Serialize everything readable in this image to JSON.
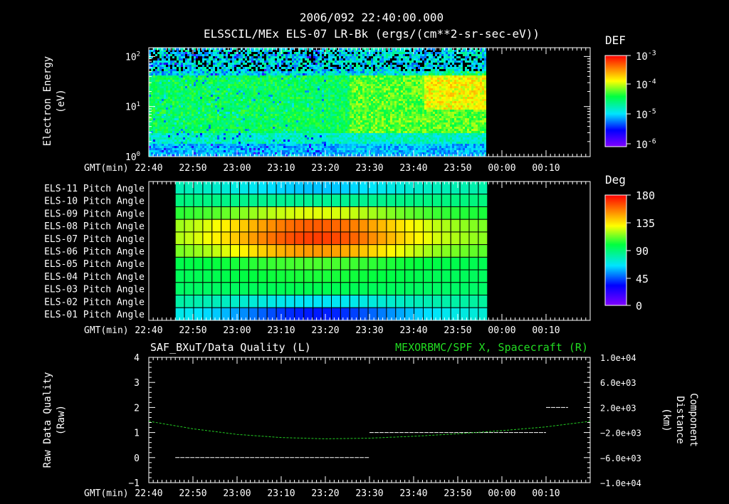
{
  "chart_data": [
    {
      "type": "heatmap",
      "name": "electron-spectrogram",
      "title": "2006/092 22:40:00.000",
      "subtitle": "ELSSCIL/MEx ELS-07 LR-Bk  (ergs/(cm**2-sr-sec-eV))",
      "ylabel_line1": "Electron Energy",
      "ylabel_line2": "(eV)",
      "yscale": "log",
      "ylim": [
        1,
        150
      ],
      "yticks": [
        {
          "base": "10",
          "exp": "0",
          "value": 1
        },
        {
          "base": "10",
          "exp": "1",
          "value": 10
        },
        {
          "base": "10",
          "exp": "2",
          "value": 100
        }
      ],
      "x_axis_label": "GMT(min)",
      "x_range_min": [
        0,
        100
      ],
      "x_ticks": [
        "22:40",
        "22:50",
        "23:00",
        "23:10",
        "23:20",
        "23:30",
        "23:40",
        "23:50",
        "00:00",
        "00:10"
      ],
      "data_coverage_min": [
        0,
        76
      ],
      "colorbar": {
        "label": "DEF",
        "scale": "log",
        "range": [
          1e-06,
          0.001
        ],
        "ticks": [
          {
            "base": "10",
            "exp": "-3"
          },
          {
            "base": "10",
            "exp": "-4"
          },
          {
            "base": "10",
            "exp": "-5"
          },
          {
            "base": "10",
            "exp": "-6"
          }
        ]
      }
    },
    {
      "type": "heatmap",
      "name": "pitch-angle-grid",
      "rows": [
        "ELS-11 Pitch Angle",
        "ELS-10 Pitch Angle",
        "ELS-09 Pitch Angle",
        "ELS-08 Pitch Angle",
        "ELS-07 Pitch Angle",
        "ELS-06 Pitch Angle",
        "ELS-05 Pitch Angle",
        "ELS-04 Pitch Angle",
        "ELS-03 Pitch Angle",
        "ELS-02 Pitch Angle",
        "ELS-01 Pitch Angle"
      ],
      "row_angles_deg": [
        65,
        85,
        120,
        150,
        155,
        140,
        105,
        100,
        95,
        70,
        45
      ],
      "data_start_min": 6,
      "data_end_min": 76,
      "x_axis_label": "GMT(min)",
      "x_ticks": [
        "22:40",
        "22:50",
        "23:00",
        "23:10",
        "23:20",
        "23:30",
        "23:40",
        "23:50",
        "00:00",
        "00:10"
      ],
      "colorbar": {
        "label": "Deg",
        "range": [
          0,
          180
        ],
        "ticks": [
          "180",
          "135",
          "90",
          "45",
          "0"
        ]
      }
    },
    {
      "type": "line",
      "name": "data-quality-and-position",
      "title_left": "SAF_BXuT/Data Quality (L)",
      "title_right": "MEXORBMC/SPF X, Spacecraft (R)",
      "right_title_color": "#22dd22",
      "ylabel_left_line1": "Raw Data Quality",
      "ylabel_left_line2": "(Raw)",
      "ylabel_right_line1": "Component",
      "ylabel_right_line2": "Distance",
      "ylabel_right_line3": "(km)",
      "ylim_left": [
        -1,
        4
      ],
      "yticks_left": [
        "4",
        "3",
        "2",
        "1",
        "0",
        "−1"
      ],
      "ylim_right": [
        -10000,
        10000
      ],
      "yticks_right": [
        "1.0e+04",
        "6.0e+03",
        "2.0e+03",
        "−2.0e+03",
        "−6.0e+03",
        "−1.0e+04"
      ],
      "x_axis_label": "GMT(min)",
      "x_ticks": [
        "22:40",
        "22:50",
        "23:00",
        "23:10",
        "23:20",
        "23:30",
        "23:40",
        "23:50",
        "00:00",
        "00:10"
      ],
      "series": [
        {
          "name": "Data Quality",
          "axis": "left",
          "color": "#ffffff",
          "segments": [
            {
              "x": [
                6,
                50
              ],
              "y": 0
            },
            {
              "x": [
                50,
                90
              ],
              "y": 1
            },
            {
              "x": [
                90,
                95
              ],
              "y": 2
            }
          ]
        },
        {
          "name": "SPF X, Spacecraft",
          "axis": "right",
          "color": "#22cc22",
          "x": [
            0,
            10,
            20,
            30,
            40,
            50,
            60,
            70,
            80,
            90,
            100
          ],
          "y": [
            -200,
            -1400,
            -2300,
            -2800,
            -3000,
            -2900,
            -2600,
            -2200,
            -1700,
            -1100,
            -200
          ]
        }
      ]
    }
  ]
}
